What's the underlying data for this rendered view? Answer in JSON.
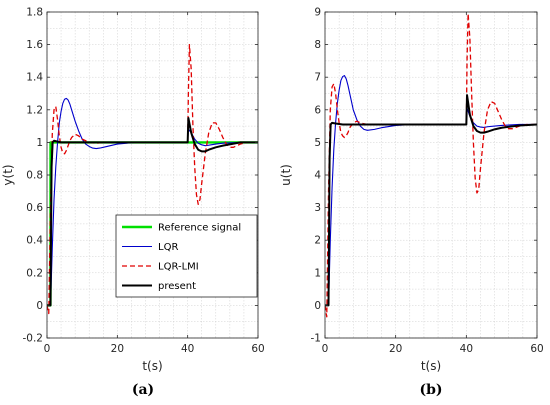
{
  "chart_data": [
    {
      "type": "line",
      "sublabel": "(a)",
      "xlabel": "t(s)",
      "ylabel": "y(t)",
      "xlim": [
        0,
        60
      ],
      "ylim": [
        -0.2,
        1.8
      ],
      "xticks": [
        0,
        20,
        40,
        60
      ],
      "yticks": [
        -0.2,
        0,
        0.2,
        0.4,
        0.6,
        0.8,
        1,
        1.2,
        1.4,
        1.6,
        1.8
      ],
      "grid": true,
      "legend": "bottom-center",
      "series": [
        {
          "name": "Reference signal",
          "color": "#00e000",
          "dash": "solid",
          "width": 2.4,
          "x": [
            0,
            0.99,
            1.0,
            60
          ],
          "y": [
            0,
            0,
            1.0,
            1.0
          ]
        },
        {
          "name": "LQR",
          "color": "#0000cc",
          "dash": "solid",
          "width": 1.1,
          "x": [
            0,
            1,
            1.5,
            2,
            2.5,
            3,
            3.5,
            4,
            4.5,
            5,
            5.5,
            6,
            6.5,
            7,
            8,
            9,
            10,
            11,
            12,
            13,
            14,
            15,
            16,
            18,
            20,
            25,
            30,
            35,
            40,
            40.2,
            41,
            42,
            43,
            44,
            45,
            46,
            48,
            50,
            55,
            60
          ],
          "y": [
            0,
            0,
            0.35,
            0.65,
            0.85,
            1.0,
            1.12,
            1.19,
            1.24,
            1.265,
            1.27,
            1.26,
            1.235,
            1.2,
            1.13,
            1.07,
            1.02,
            0.99,
            0.975,
            0.965,
            0.962,
            0.965,
            0.97,
            0.98,
            0.99,
            1.0,
            1.0,
            1.0,
            1.0,
            1.08,
            1.06,
            1.02,
            0.995,
            0.985,
            0.98,
            0.983,
            0.99,
            0.995,
            1.0,
            1.0
          ]
        },
        {
          "name": "LQR-LMI",
          "color": "#e00000",
          "dash": "dashed",
          "width": 1.3,
          "x": [
            0,
            0.5,
            1,
            1.5,
            2,
            2.5,
            3,
            3.5,
            4,
            4.5,
            5,
            5.5,
            6,
            6.5,
            7,
            8,
            9,
            10,
            11,
            12,
            14,
            16,
            20,
            30,
            40,
            40.2,
            40.5,
            41,
            41.5,
            42,
            42.5,
            43,
            43.5,
            44,
            45,
            46,
            47,
            48,
            49,
            50,
            51,
            52,
            53,
            54,
            55,
            57,
            60
          ],
          "y": [
            0,
            -0.05,
            0.6,
            1.05,
            1.2,
            1.22,
            1.14,
            1.04,
            0.97,
            0.935,
            0.93,
            0.95,
            0.98,
            1.01,
            1.03,
            1.05,
            1.04,
            1.02,
            1.01,
            1.0,
            0.995,
            1.0,
            1.0,
            1.0,
            1.0,
            1.3,
            1.6,
            1.45,
            1.1,
            0.85,
            0.68,
            0.62,
            0.65,
            0.75,
            0.93,
            1.06,
            1.12,
            1.12,
            1.08,
            1.03,
            0.99,
            0.97,
            0.97,
            0.98,
            0.99,
            1.0,
            1.0
          ]
        },
        {
          "name": "present",
          "color": "#000000",
          "dash": "solid",
          "width": 2.0,
          "x": [
            0,
            0.99,
            1.3,
            1.6,
            2,
            3,
            4,
            5,
            8,
            10,
            20,
            30,
            40,
            40.2,
            41,
            42,
            43,
            44,
            45,
            46,
            48,
            50,
            55,
            60
          ],
          "y": [
            0,
            0,
            0.85,
            1.0,
            1.01,
            1.005,
            1.0,
            1.0,
            1.0,
            1.0,
            1.0,
            1.0,
            1.0,
            1.15,
            1.06,
            0.99,
            0.955,
            0.945,
            0.945,
            0.955,
            0.97,
            0.98,
            1.0,
            1.0
          ]
        }
      ]
    },
    {
      "type": "line",
      "sublabel": "(b)",
      "xlabel": "t(s)",
      "ylabel": "u(t)",
      "xlim": [
        0,
        60
      ],
      "ylim": [
        -1,
        9
      ],
      "xticks": [
        0,
        20,
        40,
        60
      ],
      "yticks": [
        -1,
        0,
        1,
        2,
        3,
        4,
        5,
        6,
        7,
        8,
        9
      ],
      "grid": true,
      "legend": "none",
      "series": [
        {
          "name": "LQR",
          "color": "#0000cc",
          "dash": "solid",
          "width": 1.1,
          "x": [
            0,
            1,
            1.5,
            2,
            2.5,
            3,
            3.5,
            4,
            4.5,
            5,
            5.5,
            6,
            6.5,
            7,
            8,
            9,
            10,
            11,
            12,
            14,
            16,
            20,
            25,
            30,
            40,
            40.2,
            41,
            42,
            43,
            44,
            45,
            46,
            48,
            50,
            55,
            60
          ],
          "y": [
            0,
            0,
            2.0,
            3.6,
            4.8,
            5.6,
            6.2,
            6.6,
            6.9,
            7.02,
            7.05,
            6.95,
            6.75,
            6.5,
            6.0,
            5.7,
            5.5,
            5.4,
            5.37,
            5.4,
            5.45,
            5.52,
            5.55,
            5.55,
            5.55,
            6.05,
            5.8,
            5.6,
            5.5,
            5.47,
            5.46,
            5.48,
            5.5,
            5.52,
            5.55,
            5.55
          ]
        },
        {
          "name": "LQR-LMI",
          "color": "#e00000",
          "dash": "dashed",
          "width": 1.3,
          "x": [
            0,
            0.5,
            1,
            1.5,
            2,
            2.5,
            3,
            3.5,
            4,
            4.5,
            5,
            5.5,
            6,
            6.5,
            7,
            8,
            9,
            10,
            11,
            12,
            14,
            20,
            30,
            40,
            40.2,
            40.5,
            41,
            41.5,
            42,
            42.5,
            43,
            43.5,
            44,
            45,
            46,
            47,
            48,
            49,
            50,
            51,
            52,
            53,
            55,
            57,
            60
          ],
          "y": [
            0,
            -0.35,
            3.5,
            6.0,
            6.7,
            6.8,
            6.5,
            6.0,
            5.6,
            5.3,
            5.2,
            5.15,
            5.2,
            5.3,
            5.45,
            5.6,
            5.65,
            5.6,
            5.57,
            5.55,
            5.55,
            5.55,
            5.55,
            5.55,
            7.5,
            8.95,
            8.2,
            6.5,
            5.0,
            3.9,
            3.45,
            3.55,
            4.2,
            5.3,
            6.0,
            6.25,
            6.2,
            5.95,
            5.7,
            5.5,
            5.42,
            5.42,
            5.5,
            5.55,
            5.55
          ]
        },
        {
          "name": "present",
          "color": "#000000",
          "dash": "solid",
          "width": 2.0,
          "x": [
            0,
            0.99,
            1.3,
            1.6,
            2,
            3,
            5,
            10,
            20,
            30,
            40,
            40.2,
            41,
            42,
            43,
            44,
            45,
            46,
            48,
            50,
            55,
            60
          ],
          "y": [
            0,
            0,
            4.5,
            5.55,
            5.6,
            5.58,
            5.55,
            5.55,
            5.55,
            5.55,
            5.55,
            6.45,
            5.85,
            5.5,
            5.35,
            5.3,
            5.3,
            5.33,
            5.4,
            5.45,
            5.52,
            5.55
          ]
        }
      ]
    }
  ]
}
